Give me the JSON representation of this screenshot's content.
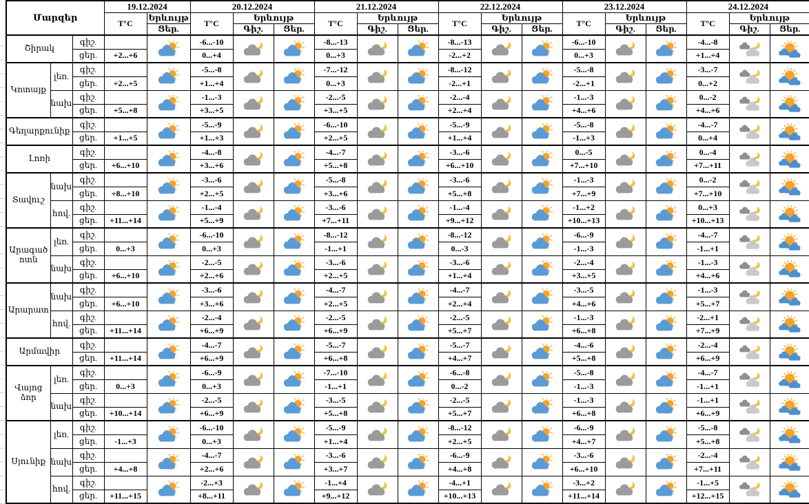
{
  "header": {
    "regions_label": "Մարզեր",
    "temp_label": "T°C",
    "phenomenon_label": "Երևույթ",
    "night_label": "Գիշ.",
    "day_label": "Ցեր."
  },
  "row_labels": {
    "night": "գիշ.",
    "day": "ցեր."
  },
  "dates": [
    {
      "label": "19.12.2024",
      "day_icon": "sun-behind-cloud"
    },
    {
      "label": "20.12.2024",
      "night_icon": "cloud-with-moon",
      "day_icon": "sun-behind-cloud"
    },
    {
      "label": "21.12.2024",
      "night_icon": "cloud-with-moon",
      "day_icon": "sun-behind-cloud"
    },
    {
      "label": "22.12.2024",
      "night_icon": "cloud-with-moon",
      "day_icon": "sun-behind-cloud"
    },
    {
      "label": "23.12.2024",
      "night_icon": "cloud-with-moon",
      "day_icon": "sun-behind-cloud"
    },
    {
      "label": "24.12.2024",
      "night_icon": "clouds-with-moon",
      "day_icon": "sun-with-clouds"
    }
  ],
  "regions": [
    {
      "name": "Շիրակ",
      "zones": [
        {
          "zone": "",
          "temps": [
            {
              "night": "",
              "day": "+2...+6"
            },
            {
              "night": "-6...-10",
              "day": "0...+4"
            },
            {
              "night": "-8...-13",
              "day": "0...+3"
            },
            {
              "night": "-8...-13",
              "day": "-2...+2"
            },
            {
              "night": "-6...-10",
              "day": "0...+3"
            },
            {
              "night": "-4...-8",
              "day": "+1...+4"
            }
          ]
        }
      ]
    },
    {
      "name": "Կոտայք",
      "zones": [
        {
          "zone": "լեռ.",
          "temps": [
            {
              "night": "",
              "day": "+2...+5"
            },
            {
              "night": "-5...-8",
              "day": "+1...+4"
            },
            {
              "night": "-7...-12",
              "day": "0...+3"
            },
            {
              "night": "-8...-12",
              "day": "-2...+1"
            },
            {
              "night": "-5...-8",
              "day": "-2...+1"
            },
            {
              "night": "-3...-7",
              "day": "0...+2"
            }
          ]
        },
        {
          "zone": "նախ.",
          "temps": [
            {
              "night": "",
              "day": "+5...+8"
            },
            {
              "night": "-1...-3",
              "day": "+3...+5"
            },
            {
              "night": "-2...-5",
              "day": "+3...+5"
            },
            {
              "night": "-2...-4",
              "day": "+2...+4"
            },
            {
              "night": "-1...-3",
              "day": "+4...+6"
            },
            {
              "night": "0...-2",
              "day": "+4...+6"
            }
          ]
        }
      ]
    },
    {
      "name": "Գեղարքունիք",
      "zones": [
        {
          "zone": "",
          "temps": [
            {
              "night": "",
              "day": "+1...+5"
            },
            {
              "night": "-5...-9",
              "day": "+1...+3"
            },
            {
              "night": "-6...-10",
              "day": "+2...+5"
            },
            {
              "night": "-5...-9",
              "day": "+1...+4"
            },
            {
              "night": "-5...-8",
              "day": "-1...+3"
            },
            {
              "night": "-4...-7",
              "day": "0...+4"
            }
          ]
        }
      ]
    },
    {
      "name": "Լոռի",
      "zones": [
        {
          "zone": "",
          "temps": [
            {
              "night": "",
              "day": "+6...+10"
            },
            {
              "night": "-4...-8",
              "day": "+3...+6"
            },
            {
              "night": "-4...-7",
              "day": "+5...+8"
            },
            {
              "night": "-3...-6",
              "day": "+6...+10"
            },
            {
              "night": "0...-5",
              "day": "+7...+10"
            },
            {
              "night": "0...-4",
              "day": "+7...+11"
            }
          ]
        }
      ]
    },
    {
      "name": "Տավուշ",
      "zones": [
        {
          "zone": "նախ.",
          "temps": [
            {
              "night": "",
              "day": "+8...+10"
            },
            {
              "night": "-3...-6",
              "day": "+2...+5"
            },
            {
              "night": "-5...-8",
              "day": "+3...+6"
            },
            {
              "night": "-3...-6",
              "day": "+5...+8"
            },
            {
              "night": "-1...-3",
              "day": "+7...+9"
            },
            {
              "night": "0...-2",
              "day": "+7...+10"
            }
          ]
        },
        {
          "zone": "հով.",
          "temps": [
            {
              "night": "",
              "day": "+11...+14"
            },
            {
              "night": "-1...-4",
              "day": "+5...+9"
            },
            {
              "night": "-3...-6",
              "day": "+7...+11"
            },
            {
              "night": "-1...-4",
              "day": "+9...+12"
            },
            {
              "night": "-1...+2",
              "day": "+10...+13"
            },
            {
              "night": "0...+3",
              "day": "+10...+13"
            }
          ]
        }
      ]
    },
    {
      "name": "Արագածոտն",
      "zones": [
        {
          "zone": "լեռ.",
          "temps": [
            {
              "night": "",
              "day": "0...+3"
            },
            {
              "night": "-6...-10",
              "day": "0...+3"
            },
            {
              "night": "-8...-12",
              "day": "-1...+1"
            },
            {
              "night": "-8...-12",
              "day": "0...-3"
            },
            {
              "night": "-6...-9",
              "day": "-1...-3"
            },
            {
              "night": "-4...-7",
              "day": "-1...+1"
            }
          ]
        },
        {
          "zone": "նախ.",
          "temps": [
            {
              "night": "",
              "day": "+6...+10"
            },
            {
              "night": "-2...-5",
              "day": "+2...+6"
            },
            {
              "night": "-3...-6",
              "day": "+2...+5"
            },
            {
              "night": "-3...-6",
              "day": "+1...+4"
            },
            {
              "night": "-2...-4",
              "day": "+3...+5"
            },
            {
              "night": "-1...-3",
              "day": "+4...+6"
            }
          ]
        }
      ]
    },
    {
      "name": "Արարատ",
      "zones": [
        {
          "zone": "նախ.",
          "temps": [
            {
              "night": "",
              "day": "+6...+10"
            },
            {
              "night": "-3...-6",
              "day": "+3...+6"
            },
            {
              "night": "-4...-7",
              "day": "+2...+5"
            },
            {
              "night": "-4...-7",
              "day": "+2...+4"
            },
            {
              "night": "-3...-5",
              "day": "+4...+6"
            },
            {
              "night": "-1...-3",
              "day": "+5...+7"
            }
          ]
        },
        {
          "zone": "հով.",
          "temps": [
            {
              "night": "",
              "day": "+11...+14"
            },
            {
              "night": "-2...-4",
              "day": "+6...+9"
            },
            {
              "night": "-2...-5",
              "day": "+6...+9"
            },
            {
              "night": "-2...-5",
              "day": "+5...+7"
            },
            {
              "night": "-1...-3",
              "day": "+6...+8"
            },
            {
              "night": "-2...+1",
              "day": "+7...+9"
            }
          ]
        }
      ]
    },
    {
      "name": "Արմավիր",
      "zones": [
        {
          "zone": "",
          "temps": [
            {
              "night": "",
              "day": "+11...+14"
            },
            {
              "night": "-4...-7",
              "day": "+6...+9"
            },
            {
              "night": "-5...-7",
              "day": "+6...+8"
            },
            {
              "night": "-5...-7",
              "day": "+4...+7"
            },
            {
              "night": "-4...-6",
              "day": "+5...+8"
            },
            {
              "night": "-2...-4",
              "day": "+6...+9"
            }
          ]
        }
      ]
    },
    {
      "name": "Վայոց ձոր",
      "zones": [
        {
          "zone": "լեռ.",
          "temps": [
            {
              "night": "",
              "day": "0...+3"
            },
            {
              "night": "-6...-9",
              "day": "0...+3"
            },
            {
              "night": "-7...-10",
              "day": "-1...+1"
            },
            {
              "night": "-6...-8",
              "day": "0...-2"
            },
            {
              "night": "-5...-8",
              "day": "-1...-3"
            },
            {
              "night": "-4...-7",
              "day": "-1...+1"
            }
          ]
        },
        {
          "zone": "նախ.",
          "temps": [
            {
              "night": "",
              "day": "+10...+14"
            },
            {
              "night": "-2...-5",
              "day": "+6...+9"
            },
            {
              "night": "-3...-5",
              "day": "+5...+8"
            },
            {
              "night": "-2...-5",
              "day": "+5...+7"
            },
            {
              "night": "-1...-3",
              "day": "+6...+8"
            },
            {
              "night": "-1...+1",
              "day": "+6...+9"
            }
          ]
        }
      ]
    },
    {
      "name": "Սյունիք",
      "zones": [
        {
          "zone": "լեռ.",
          "temps": [
            {
              "night": "",
              "day": "-1...+3"
            },
            {
              "night": "-6...-10",
              "day": "0...+3"
            },
            {
              "night": "-5...-9",
              "day": "+1...+4"
            },
            {
              "night": "-8...-12",
              "day": "+2...+5"
            },
            {
              "night": "-6...-9",
              "day": "+4...+7"
            },
            {
              "night": "-5...-8",
              "day": "+5...+8"
            }
          ]
        },
        {
          "zone": "նախ.",
          "temps": [
            {
              "night": "",
              "day": "+4...+8"
            },
            {
              "night": "-4...-7",
              "day": "+2...+6"
            },
            {
              "night": "-3...-6",
              "day": "+3...+7"
            },
            {
              "night": "-6...-9",
              "day": "+4...+8"
            },
            {
              "night": "-3...-6",
              "day": "+6...+10"
            },
            {
              "night": "-2...-4",
              "day": "+7...+11"
            }
          ]
        },
        {
          "zone": "հով.",
          "temps": [
            {
              "night": "",
              "day": "+11...+15"
            },
            {
              "night": "-2...+3",
              "day": "+8...+11"
            },
            {
              "night": "-1...+4",
              "day": "+9...+12"
            },
            {
              "night": "-4...+1",
              "day": "+10...+13"
            },
            {
              "night": "-3...+2",
              "day": "+11...+14"
            },
            {
              "night": "-1...+5",
              "day": "+12...+15"
            }
          ]
        }
      ]
    }
  ],
  "colors": {
    "sun": "#F4A42C",
    "sun_ray": "#F7B24A",
    "cloud_blue": "#5B9BD5",
    "cloud_blue_dark": "#4E90CF",
    "cloud_gray": "#9B9B9B",
    "cloud_dark_gray": "#8F8F8F",
    "cloud_light_gray": "#C9C9C9",
    "moon": "#F2C13E",
    "border": "#000000",
    "background": "#FFFFFF"
  }
}
